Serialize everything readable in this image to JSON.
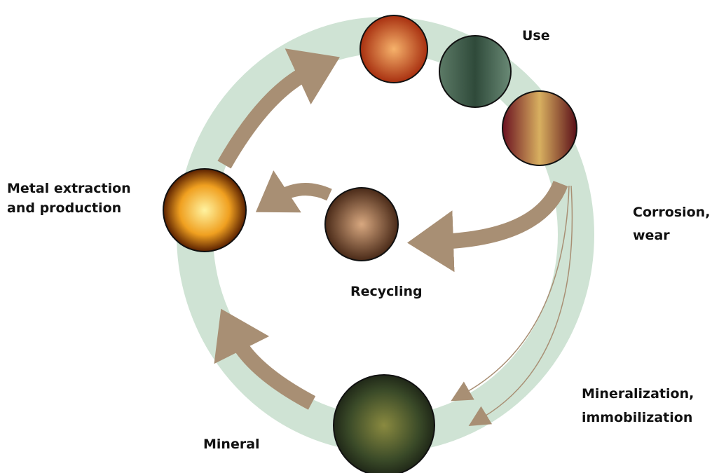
{
  "labels": {
    "use": "Use",
    "extraction": [
      "Metal extraction",
      "and production"
    ],
    "corrosion": [
      "Corrosion,",
      "wear"
    ],
    "recycling": "Recycling",
    "mineralization": [
      "Mineralization,",
      "immobilization"
    ],
    "mineral": "Mineral"
  }
}
